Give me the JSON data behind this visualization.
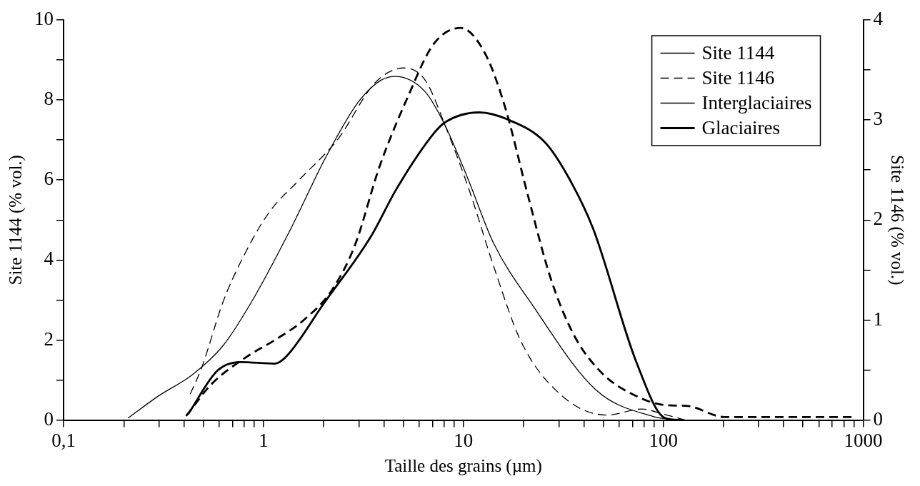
{
  "chart_data": {
    "type": "line",
    "xlabel": "Taille des grains (µm)",
    "ylabel": "Site 1144 (% vol.)",
    "y2label": "Site 1146 (% vol.)",
    "log": "x",
    "legend": "top right",
    "grid": false,
    "marker": "none",
    "xlim": [
      0.1,
      1000
    ],
    "xticks": [
      {
        "value": 0.1,
        "label": "0,1"
      },
      {
        "value": 0.2,
        "label": null
      },
      {
        "value": 0.3,
        "label": null
      },
      {
        "value": 0.4,
        "label": null
      },
      {
        "value": 0.5,
        "label": null
      },
      {
        "value": 0.6,
        "label": null
      },
      {
        "value": 0.7,
        "label": null
      },
      {
        "value": 0.8,
        "label": null
      },
      {
        "value": 0.9,
        "label": null
      },
      1,
      {
        "value": 2,
        "label": null
      },
      {
        "value": 3,
        "label": null
      },
      {
        "value": 4,
        "label": null
      },
      {
        "value": 5,
        "label": null
      },
      {
        "value": 6,
        "label": null
      },
      {
        "value": 7,
        "label": null
      },
      {
        "value": 8,
        "label": null
      },
      {
        "value": 9,
        "label": null
      },
      10,
      {
        "value": 20,
        "label": null
      },
      {
        "value": 30,
        "label": null
      },
      {
        "value": 40,
        "label": null
      },
      {
        "value": 50,
        "label": null
      },
      {
        "value": 60,
        "label": null
      },
      {
        "value": 70,
        "label": null
      },
      {
        "value": 80,
        "label": null
      },
      {
        "value": 90,
        "label": null
      },
      100,
      {
        "value": 200,
        "label": null
      },
      {
        "value": 300,
        "label": null
      },
      {
        "value": 400,
        "label": null
      },
      {
        "value": 500,
        "label": null
      },
      {
        "value": 600,
        "label": null
      },
      {
        "value": 700,
        "label": null
      },
      {
        "value": 800,
        "label": null
      },
      {
        "value": 900,
        "label": null
      },
      1000
    ],
    "ylim": [
      0,
      10
    ],
    "yticks": [
      0,
      {
        "value": 1,
        "label": null
      },
      2,
      {
        "value": 3,
        "label": null
      },
      4,
      {
        "value": 5,
        "label": null
      },
      6,
      {
        "value": 7,
        "label": null
      },
      8,
      {
        "value": 9,
        "label": null
      },
      10
    ],
    "y2lim": [
      0,
      4
    ],
    "y2ticks": [
      0,
      {
        "value": 0.5,
        "label": null
      },
      1,
      {
        "value": 1.5,
        "label": null
      },
      2,
      {
        "value": 2.5,
        "label": null
      },
      3,
      {
        "value": 3.5,
        "label": null
      },
      4
    ],
    "annotations": [
      "Interglaciaires"
    ],
    "series": [
      {
        "name": "Site 1144",
        "color": "#000000",
        "line_style": "solid",
        "x": [
          0.21,
          0.3,
          0.44,
          0.63,
          0.88,
          1.35,
          2.07,
          2.96,
          3.86,
          4.55,
          6.43,
          8.09,
          10.5,
          14.1,
          22.4,
          46.1,
          89,
          120
        ],
        "values": [
          0.05,
          0.61,
          1.13,
          1.87,
          2.99,
          4.72,
          6.61,
          7.93,
          8.49,
          8.59,
          8.21,
          7.37,
          6.05,
          4.44,
          2.84,
          0.75,
          0.09,
          0
        ]
      },
      {
        "name": "Site 1146",
        "color": "#000000",
        "line_style": "dashed",
        "axis": "y2",
        "x": [
          0.43,
          0.49,
          0.63,
          0.82,
          1.07,
          1.49,
          2.36,
          3.61,
          5.02,
          6.43,
          8.09,
          10.9,
          14.1,
          19.6,
          32.1,
          52.5,
          78,
          100,
          129
        ],
        "values": [
          0.26,
          0.52,
          1.19,
          1.69,
          2.08,
          2.39,
          2.81,
          3.37,
          3.52,
          3.4,
          2.95,
          2.25,
          1.55,
          0.77,
          0.22,
          0.05,
          0.11,
          0.06,
          0
        ]
      },
      {
        "name": "Glaciaires",
        "color": "#000000",
        "line_style": "solid",
        "x": [
          0.42,
          0.59,
          0.77,
          1.14,
          1.3,
          2,
          3.44,
          4.62,
          7.1,
          8.09,
          12,
          16.7,
          25.5,
          33.1,
          44.5,
          73.3,
          102,
          123
        ],
        "values": [
          0.15,
          1.24,
          1.45,
          1.41,
          1.59,
          2.91,
          4.58,
          5.77,
          7.16,
          7.44,
          7.69,
          7.51,
          6.95,
          6.12,
          4.79,
          1.45,
          0.05,
          0
        ]
      },
      {
        "color": "#000000",
        "line_style": "dashed",
        "axis": "y2",
        "x": [
          0.41,
          0.55,
          0.82,
          1.14,
          1.59,
          2.2,
          2.87,
          3.8,
          5.27,
          7.1,
          9.7,
          12.8,
          16.1,
          21,
          27.3,
          35.5,
          49.3,
          73.3,
          102,
          133,
          202,
          900
        ],
        "values": [
          0.04,
          0.36,
          0.63,
          0.8,
          1,
          1.3,
          1.75,
          2.53,
          3.23,
          3.76,
          3.92,
          3.67,
          3.14,
          2.25,
          1.42,
          0.86,
          0.47,
          0.24,
          0.15,
          0.14,
          0.03,
          0.03
        ]
      }
    ]
  }
}
